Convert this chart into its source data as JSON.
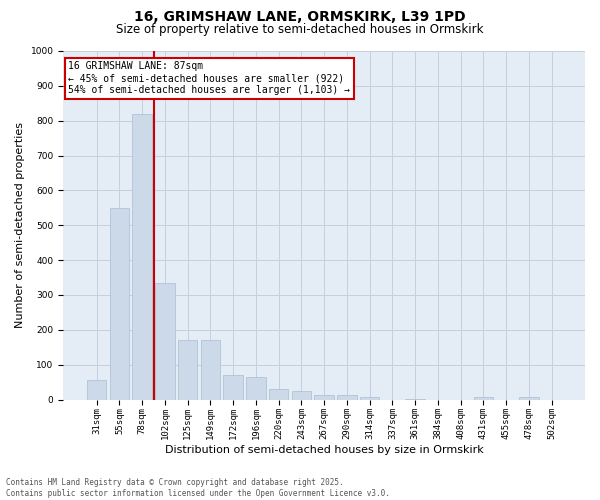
{
  "title_line1": "16, GRIMSHAW LANE, ORMSKIRK, L39 1PD",
  "title_line2": "Size of property relative to semi-detached houses in Ormskirk",
  "xlabel": "Distribution of semi-detached houses by size in Ormskirk",
  "ylabel": "Number of semi-detached properties",
  "categories": [
    "31sqm",
    "55sqm",
    "78sqm",
    "102sqm",
    "125sqm",
    "149sqm",
    "172sqm",
    "196sqm",
    "220sqm",
    "243sqm",
    "267sqm",
    "290sqm",
    "314sqm",
    "337sqm",
    "361sqm",
    "384sqm",
    "408sqm",
    "431sqm",
    "455sqm",
    "478sqm",
    "502sqm"
  ],
  "values": [
    55,
    550,
    820,
    335,
    170,
    170,
    70,
    65,
    30,
    25,
    13,
    12,
    8,
    0,
    2,
    0,
    0,
    7,
    0,
    8,
    0
  ],
  "bar_color": "#ccd9e8",
  "bar_edge_color": "#a8bdd0",
  "grid_color": "#c5cfe0",
  "background_color": "#e4ecf5",
  "vline_color": "#cc0000",
  "annotation_text": "16 GRIMSHAW LANE: 87sqm\n← 45% of semi-detached houses are smaller (922)\n54% of semi-detached houses are larger (1,103) →",
  "annotation_box_color": "#ffffff",
  "annotation_box_edge_color": "#cc0000",
  "ylim": [
    0,
    1000
  ],
  "yticks": [
    0,
    100,
    200,
    300,
    400,
    500,
    600,
    700,
    800,
    900,
    1000
  ],
  "footer_line1": "Contains HM Land Registry data © Crown copyright and database right 2025.",
  "footer_line2": "Contains public sector information licensed under the Open Government Licence v3.0.",
  "title_fontsize": 10,
  "subtitle_fontsize": 8.5,
  "tick_fontsize": 6.5,
  "label_fontsize": 8,
  "footer_fontsize": 5.5,
  "annotation_fontsize": 7
}
